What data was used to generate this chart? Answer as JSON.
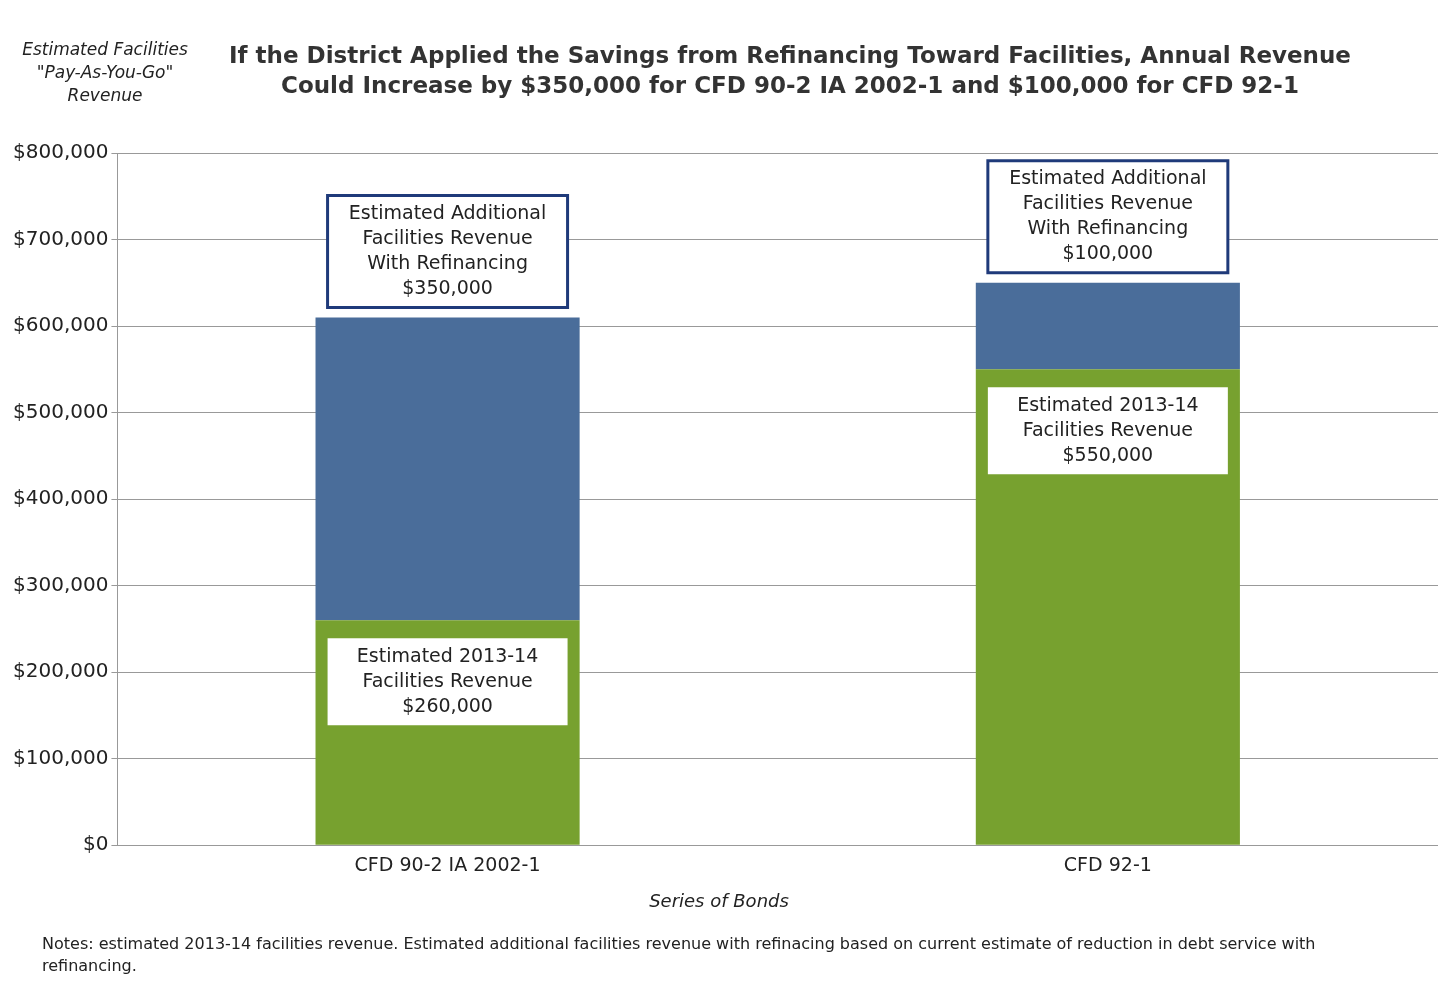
{
  "chart_data": {
    "type": "bar",
    "stacked": true,
    "title": "If the District Applied the Savings from Refinancing Toward Facilities, Annual Revenue Could Increase by $350,000 for CFD 90-2 IA 2002-1 and $100,000 for CFD 92-1",
    "ylabel": "Estimated Facilities \"Pay-As-You-Go\" Revenue",
    "xlabel": "Series of Bonds",
    "categories": [
      "CFD 90-2 IA 2002-1",
      "CFD 92-1"
    ],
    "series": [
      {
        "name": "Estimated 2013-14 Facilities Revenue",
        "color": "#77a12f",
        "values": [
          260000,
          550000
        ],
        "value_labels": [
          "$260,000",
          "$550,000"
        ]
      },
      {
        "name": "Estimated Additional Facilities Revenue With Refinancing",
        "color": "#4a6d9a",
        "values": [
          350000,
          100000
        ],
        "value_labels": [
          "$350,000",
          "$100,000"
        ]
      }
    ],
    "ylim": [
      0,
      800000
    ],
    "yticks": [
      {
        "value": 0,
        "label": "$0"
      },
      {
        "value": 100000,
        "label": "$100,000"
      },
      {
        "value": 200000,
        "label": "$200,000"
      },
      {
        "value": 300000,
        "label": "$300,000"
      },
      {
        "value": 400000,
        "label": "$400,000"
      },
      {
        "value": 500000,
        "label": "$500,000"
      },
      {
        "value": 600000,
        "label": "$600,000"
      },
      {
        "value": 700000,
        "label": "$700,000"
      },
      {
        "value": 800000,
        "label": "$800,000"
      }
    ],
    "grid": "y",
    "legend": false,
    "annotations": [
      "Notes: estimated 2013-14 facilities revenue. Estimated additional facilities revenue with refinacing based on current estimate of reduction in debt service with refinancing."
    ]
  }
}
